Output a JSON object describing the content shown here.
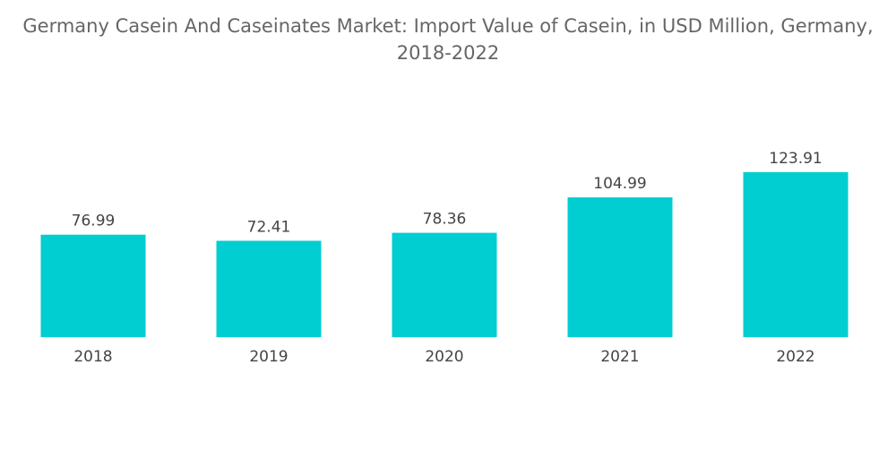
{
  "chart_data": {
    "type": "bar",
    "title": [
      "Germany Casein And Caseinates Market: Import Value of Casein, in USD Million, Germany,",
      "2018-2022"
    ],
    "categories": [
      "2018",
      "2019",
      "2020",
      "2021",
      "2022"
    ],
    "values": [
      76.99,
      72.41,
      78.36,
      104.99,
      123.91
    ],
    "value_labels": [
      "76.99",
      "72.41",
      "78.36",
      "104.99",
      "123.91"
    ],
    "xlabel": "",
    "ylabel": "",
    "ylim": [
      0,
      123.91
    ],
    "grid": false,
    "legend": "none",
    "bar_color": "#00CED1"
  }
}
